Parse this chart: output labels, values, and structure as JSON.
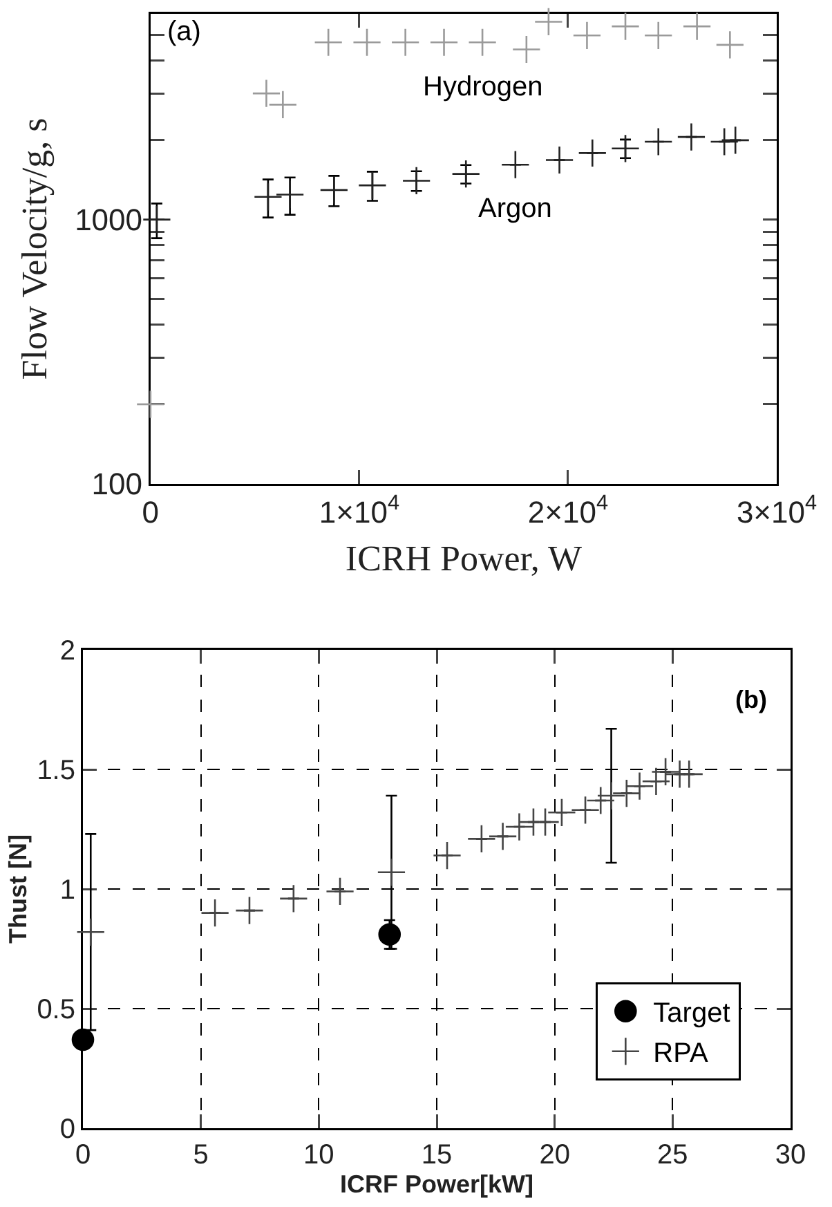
{
  "chart_data": [
    {
      "type": "scatter",
      "xlabel": "ICRH Power, W",
      "ylabel": "Flow Velocity/g, s",
      "annotations": [
        "(a)"
      ],
      "log": "y",
      "grid": false,
      "legend": false,
      "xlim": [
        0,
        30000
      ],
      "xticks": [
        0,
        {
          "value": 10000,
          "label": "1×10$^{4}$"
        },
        {
          "value": 20000,
          "label": "2×10$^{4}$"
        },
        {
          "value": 30000,
          "label": "3×10$^{4}$"
        }
      ],
      "ylim": [
        100,
        6000
      ],
      "yticks": [
        100,
        {
          "value": 200,
          "label": null
        },
        {
          "value": 300,
          "label": null
        },
        {
          "value": 400,
          "label": null
        },
        {
          "value": 500,
          "label": null
        },
        {
          "value": 600,
          "label": null
        },
        {
          "value": 700,
          "label": null
        },
        {
          "value": 800,
          "label": null
        },
        {
          "value": 900,
          "label": null
        },
        1000,
        {
          "value": 2000,
          "label": null
        },
        {
          "value": 3000,
          "label": null
        },
        {
          "value": 4000,
          "label": null
        },
        {
          "value": 5000,
          "label": null
        }
      ],
      "series": [
        {
          "name": "Hydrogen",
          "color": "#9a9a9a",
          "marker": "cross",
          "x": [
            0,
            5550,
            6340,
            8520,
            10370,
            12210,
            14060,
            15900,
            18010,
            19070,
            20910,
            22750,
            24330,
            26180,
            27760
          ],
          "values": [
            200,
            3000,
            2720,
            4680,
            4680,
            4680,
            4680,
            4680,
            4400,
            5600,
            4970,
            5380,
            4970,
            5380,
            4580
          ]
        },
        {
          "name": "Argon",
          "color": "#222222",
          "marker": "cross",
          "x": [
            300,
            5630,
            6680,
            8790,
            10630,
            12740,
            15110,
            17480,
            19590,
            21170,
            22750,
            24330,
            25910,
            27490,
            28020
          ],
          "values": [
            1000,
            1218,
            1243,
            1293,
            1347,
            1402,
            1488,
            1613,
            1679,
            1785,
            1857,
            1970,
            2053,
            1970,
            1995
          ],
          "errors": [
            150,
            200,
            200,
            170,
            170,
            120,
            120,
            null,
            null,
            null,
            150,
            null,
            null,
            null,
            null
          ]
        }
      ]
    },
    {
      "type": "scatter",
      "xlabel": "ICRF Power[kW]",
      "ylabel": "Thust [N]",
      "annotations": [
        "(b)"
      ],
      "grid": true,
      "legend": "bottom right",
      "xlim": [
        0,
        30
      ],
      "xticks": [
        0,
        5,
        10,
        15,
        20,
        25,
        30
      ],
      "ylim": [
        0,
        2
      ],
      "yticks": [
        0,
        0.5,
        1,
        1.5,
        2
      ],
      "series": [
        {
          "name": "Target",
          "color": "#000000",
          "marker": "circle",
          "x": [
            0,
            13
          ],
          "values": [
            0.37,
            0.81
          ],
          "errors": [
            null,
            0.06
          ]
        },
        {
          "name": "RPA",
          "color": "#444444",
          "marker": "cross",
          "x": [
            0.33,
            5.6,
            7.06,
            8.93,
            10.9,
            13.08,
            15.44,
            16.9,
            17.8,
            18.5,
            19.1,
            19.6,
            20.3,
            21.3,
            21.95,
            22.4,
            23.05,
            23.6,
            24.3,
            24.7,
            25.3,
            25.7
          ],
          "values": [
            0.82,
            0.9,
            0.91,
            0.96,
            0.99,
            1.07,
            1.14,
            1.21,
            1.22,
            1.26,
            1.28,
            1.28,
            1.32,
            1.33,
            1.37,
            1.39,
            1.4,
            1.43,
            1.45,
            1.49,
            1.48,
            1.48
          ],
          "errors": [
            0.41,
            null,
            null,
            null,
            null,
            0.32,
            null,
            null,
            null,
            null,
            null,
            null,
            null,
            null,
            null,
            0.28,
            null,
            null,
            null,
            null,
            null,
            null
          ]
        }
      ]
    }
  ]
}
